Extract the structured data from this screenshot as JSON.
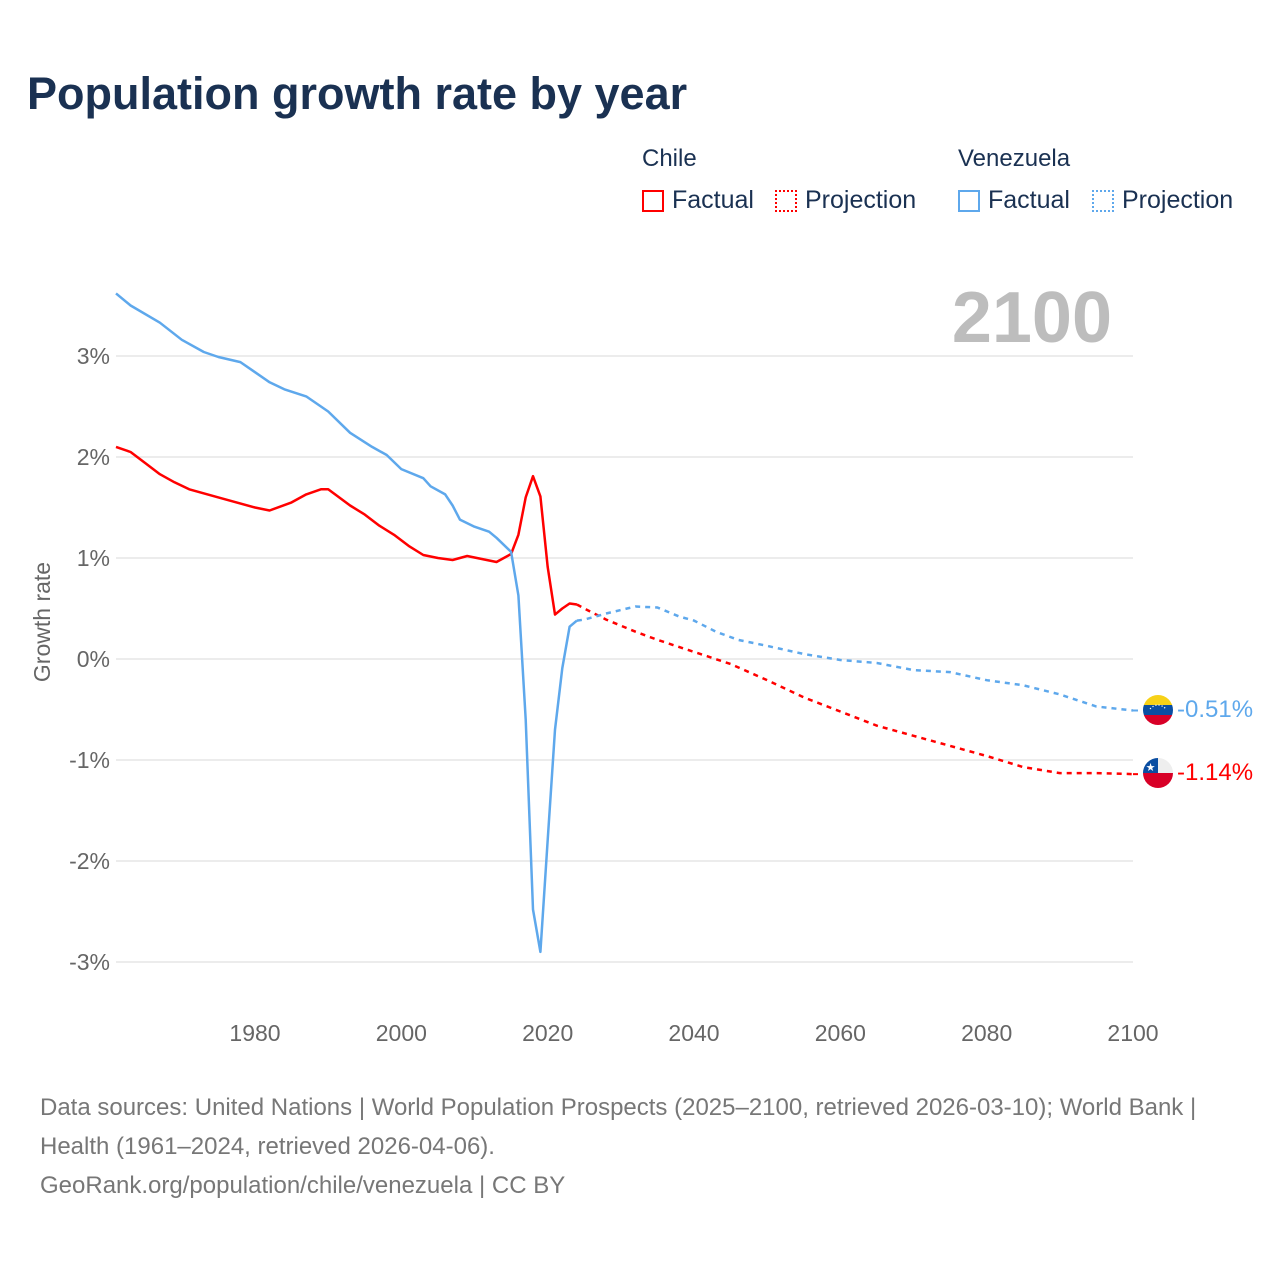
{
  "chart_data": {
    "type": "line",
    "title": "Population growth rate by year",
    "ylabel": "Growth rate",
    "xlabel": "",
    "xlim": [
      1961,
      2100
    ],
    "ylim": [
      -3.3,
      3.7
    ],
    "x_ticks": [
      1980,
      2000,
      2020,
      2040,
      2060,
      2080,
      2100
    ],
    "y_ticks": [
      {
        "v": 3,
        "label": "3%"
      },
      {
        "v": 2,
        "label": "2%"
      },
      {
        "v": 1,
        "label": "1%"
      },
      {
        "v": 0,
        "label": "0%"
      },
      {
        "v": -1,
        "label": "-1%"
      },
      {
        "v": -2,
        "label": "-2%"
      },
      {
        "v": -3,
        "label": "-3%"
      }
    ],
    "grid": true,
    "year_watermark": "2100",
    "legend": {
      "placement": "top-right",
      "groups": [
        {
          "name": "Chile",
          "items": [
            "Factual",
            "Projection"
          ]
        },
        {
          "name": "Venezuela",
          "items": [
            "Factual",
            "Projection"
          ]
        }
      ]
    },
    "series": [
      {
        "name": "Chile",
        "color": "#ff0000",
        "end_label": "-1.14%",
        "factual": [
          [
            1961,
            2.1
          ],
          [
            1963,
            2.05
          ],
          [
            1965,
            1.94
          ],
          [
            1967,
            1.83
          ],
          [
            1969,
            1.75
          ],
          [
            1971,
            1.68
          ],
          [
            1975,
            1.6
          ],
          [
            1980,
            1.5
          ],
          [
            1982,
            1.47
          ],
          [
            1985,
            1.55
          ],
          [
            1987,
            1.63
          ],
          [
            1989,
            1.68
          ],
          [
            1990,
            1.68
          ],
          [
            1993,
            1.52
          ],
          [
            1995,
            1.43
          ],
          [
            1997,
            1.32
          ],
          [
            1999,
            1.23
          ],
          [
            2001,
            1.12
          ],
          [
            2003,
            1.03
          ],
          [
            2005,
            1.0
          ],
          [
            2007,
            0.98
          ],
          [
            2009,
            1.02
          ],
          [
            2011,
            0.99
          ],
          [
            2013,
            0.96
          ],
          [
            2015,
            1.04
          ],
          [
            2016,
            1.23
          ],
          [
            2017,
            1.6
          ],
          [
            2018,
            1.81
          ],
          [
            2019,
            1.61
          ],
          [
            2020,
            0.91
          ],
          [
            2021,
            0.44
          ],
          [
            2022,
            0.5
          ],
          [
            2023,
            0.55
          ],
          [
            2024,
            0.54
          ]
        ],
        "projection": [
          [
            2024,
            0.54
          ],
          [
            2025,
            0.5
          ],
          [
            2028,
            0.39
          ],
          [
            2032,
            0.27
          ],
          [
            2035,
            0.19
          ],
          [
            2040,
            0.07
          ],
          [
            2045,
            -0.05
          ],
          [
            2050,
            -0.21
          ],
          [
            2055,
            -0.38
          ],
          [
            2060,
            -0.52
          ],
          [
            2065,
            -0.66
          ],
          [
            2070,
            -0.76
          ],
          [
            2075,
            -0.86
          ],
          [
            2080,
            -0.96
          ],
          [
            2085,
            -1.07
          ],
          [
            2090,
            -1.13
          ],
          [
            2095,
            -1.13
          ],
          [
            2100,
            -1.14
          ]
        ]
      },
      {
        "name": "Venezuela",
        "color": "#5ea8ec",
        "end_label": "-0.51%",
        "factual": [
          [
            1961,
            3.62
          ],
          [
            1963,
            3.5
          ],
          [
            1967,
            3.33
          ],
          [
            1970,
            3.16
          ],
          [
            1973,
            3.04
          ],
          [
            1975,
            2.99
          ],
          [
            1978,
            2.94
          ],
          [
            1980,
            2.84
          ],
          [
            1982,
            2.74
          ],
          [
            1984,
            2.67
          ],
          [
            1987,
            2.6
          ],
          [
            1990,
            2.45
          ],
          [
            1993,
            2.24
          ],
          [
            1996,
            2.1
          ],
          [
            1998,
            2.02
          ],
          [
            2000,
            1.88
          ],
          [
            2003,
            1.79
          ],
          [
            2004,
            1.71
          ],
          [
            2006,
            1.63
          ],
          [
            2007,
            1.52
          ],
          [
            2008,
            1.38
          ],
          [
            2010,
            1.31
          ],
          [
            2012,
            1.26
          ],
          [
            2013,
            1.2
          ],
          [
            2015,
            1.06
          ],
          [
            2016,
            0.63
          ],
          [
            2017,
            -0.6
          ],
          [
            2018,
            -2.48
          ],
          [
            2019,
            -2.9
          ],
          [
            2020,
            -1.79
          ],
          [
            2021,
            -0.7
          ],
          [
            2022,
            -0.09
          ],
          [
            2023,
            0.32
          ],
          [
            2024,
            0.38
          ]
        ],
        "projection": [
          [
            2024,
            0.38
          ],
          [
            2025,
            0.39
          ],
          [
            2028,
            0.45
          ],
          [
            2032,
            0.52
          ],
          [
            2035,
            0.51
          ],
          [
            2038,
            0.42
          ],
          [
            2040,
            0.38
          ],
          [
            2043,
            0.27
          ],
          [
            2046,
            0.19
          ],
          [
            2050,
            0.13
          ],
          [
            2055,
            0.05
          ],
          [
            2060,
            -0.01
          ],
          [
            2065,
            -0.04
          ],
          [
            2070,
            -0.11
          ],
          [
            2075,
            -0.13
          ],
          [
            2080,
            -0.21
          ],
          [
            2085,
            -0.26
          ],
          [
            2090,
            -0.35
          ],
          [
            2095,
            -0.47
          ],
          [
            2100,
            -0.51
          ]
        ]
      }
    ]
  },
  "footer": {
    "sources": "Data sources: United Nations | World Population Prospects (2025–2100, retrieved 2026-03-10); World Bank | Health (1961–2024, retrieved 2026-04-06).",
    "link": "GeoRank.org/population/chile/venezuela | CC BY"
  }
}
